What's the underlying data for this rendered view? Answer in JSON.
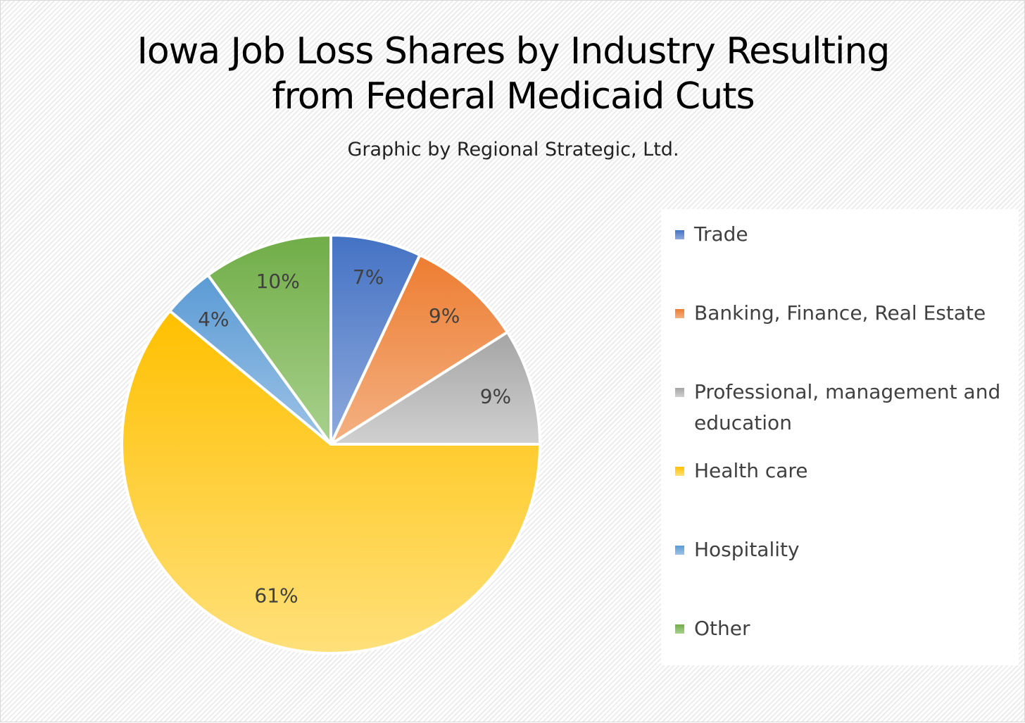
{
  "chart_data": {
    "type": "pie",
    "title_lines": [
      "Iowa Job Loss Shares by Industry Resulting",
      "from Federal Medicaid Cuts"
    ],
    "subtitle": "Graphic by Regional Strategic, Ltd.",
    "legend_position": "right",
    "slices": [
      {
        "name": "Trade",
        "value": 7,
        "label": "7%",
        "color_top": "#4472c4",
        "color_bottom": "#8faadc"
      },
      {
        "name": "Banking, Finance, Real Estate",
        "value": 9,
        "label": "9%",
        "color_top": "#ed7d31",
        "color_bottom": "#f4b183"
      },
      {
        "name": "Professional, management and education",
        "value": 9,
        "label": "9%",
        "color_top": "#a5a5a5",
        "color_bottom": "#d0d0d0"
      },
      {
        "name": "Health care",
        "value": 61,
        "label": "61%",
        "color_top": "#ffc000",
        "color_bottom": "#ffe07a"
      },
      {
        "name": "Hospitality",
        "value": 4,
        "label": "4%",
        "color_top": "#5b9bd5",
        "color_bottom": "#9dc3e6"
      },
      {
        "name": "Other",
        "value": 10,
        "label": "10%",
        "color_top": "#70ad47",
        "color_bottom": "#a9d18e"
      }
    ]
  }
}
